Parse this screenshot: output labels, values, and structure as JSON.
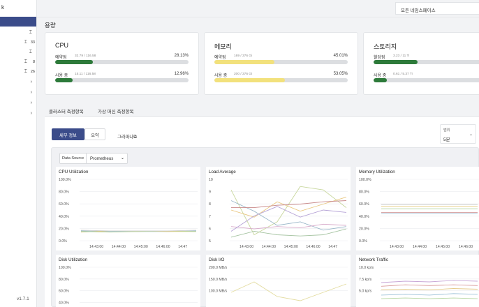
{
  "sidebar": {
    "brand": "k",
    "items": [
      {
        "icon": "⌶",
        "badge": ""
      },
      {
        "icon": "⌶",
        "badge": "33"
      },
      {
        "icon": "⌶",
        "badge": ""
      },
      {
        "icon": "⌶",
        "badge": "8"
      },
      {
        "icon": "⌶",
        "badge": "26"
      },
      {
        "icon": "›",
        "badge": ""
      },
      {
        "icon": "›",
        "badge": ""
      },
      {
        "icon": "›",
        "badge": ""
      },
      {
        "icon": "›",
        "badge": ""
      }
    ],
    "version": "v1.7.1"
  },
  "header": {
    "namespace": "모든 네임스페이스"
  },
  "capacity": {
    "title": "용량",
    "cards": [
      {
        "title": "CPU",
        "color": "#2d7a3a",
        "metrics": [
          {
            "label": "예약됨",
            "sub": "32.79 / 116.58",
            "pct": "28.13%",
            "value": 0.2813
          },
          {
            "label": "사용 중",
            "sub": "15.11 / 116.58",
            "pct": "12.96%",
            "value": 0.1296
          }
        ]
      },
      {
        "title": "메모리",
        "color": "#f2e17c",
        "metrics": [
          {
            "label": "예약됨",
            "sub": "169 / 376 Gi",
            "pct": "45.01%",
            "value": 0.4501
          },
          {
            "label": "사용 중",
            "sub": "200 / 376 Gi",
            "pct": "53.05%",
            "value": 0.5305
          }
        ]
      },
      {
        "title": "스토리지",
        "color": "#2d7a3a",
        "metrics": [
          {
            "label": "할당됨",
            "sub": "3.23 / 11 Ti",
            "pct": "",
            "value": 0.36
          },
          {
            "label": "사용 중",
            "sub": "0.61 / 5.37 Ti",
            "pct": "",
            "value": 0.11
          }
        ]
      }
    ]
  },
  "tabs": [
    {
      "label": "클러스터 측정항목",
      "active": true
    },
    {
      "label": "가상 머신 측정항목",
      "active": false
    }
  ],
  "panel": {
    "detail_button": "세부 정보",
    "summary_button": "요약",
    "grafana_link": "그라파나",
    "range_label": "범위",
    "range_value": "5분",
    "datasource_label": "Data Source",
    "datasource_value": "Prometheus"
  },
  "chart_data": [
    {
      "type": "line",
      "title": "CPU Utilization",
      "y_ticks": [
        "100.0%",
        "80.0%",
        "60.0%",
        "40.0%",
        "20.0%",
        "0.0%"
      ],
      "ylim": [
        0,
        100
      ],
      "x_ticks": [
        "14:43:00",
        "14:44:00",
        "14:45:00",
        "14:46:00",
        "14:47"
      ],
      "series": [
        {
          "color": "#8fbfd6",
          "values": [
            16,
            15,
            15,
            15,
            16
          ]
        },
        {
          "color": "#e3c97a",
          "values": [
            14,
            16,
            16,
            15,
            15
          ]
        },
        {
          "color": "#b8d39b",
          "values": [
            15,
            14,
            15,
            16,
            15
          ]
        },
        {
          "color": "#cfcfcf",
          "values": [
            17,
            16,
            16,
            16,
            17
          ]
        }
      ]
    },
    {
      "type": "line",
      "title": "Load Average",
      "y_ticks": [
        "10",
        "9",
        "8",
        "7",
        "6",
        "5"
      ],
      "ylim": [
        4.8,
        10
      ],
      "x_ticks": [
        "14:43:00",
        "14:44:00",
        "14:45:00",
        "14:46:00",
        "14:47"
      ],
      "series": [
        {
          "color": "#c8d79d",
          "values": [
            9.1,
            5.3,
            6.4,
            9.4,
            9.1,
            7.6
          ]
        },
        {
          "color": "#e9c77f",
          "values": [
            7.4,
            6.8,
            8.1,
            7.3,
            7.9,
            8.5
          ]
        },
        {
          "color": "#9bb7c9",
          "values": [
            8.2,
            7.3,
            6.1,
            6.4,
            5.7,
            6.0
          ]
        },
        {
          "color": "#c98a8a",
          "values": [
            7.6,
            7.6,
            7.8,
            7.9,
            8.1,
            8.2
          ]
        },
        {
          "color": "#a6c4a2",
          "values": [
            5.1,
            5.6,
            5.3,
            5.2,
            5.3,
            5.8
          ]
        },
        {
          "color": "#d7a9c9",
          "values": [
            6.0,
            5.8,
            6.0,
            5.9,
            6.2,
            6.1
          ]
        },
        {
          "color": "#b5a2d6",
          "values": [
            5.6,
            6.9,
            7.7,
            6.8,
            7.4,
            7.2
          ]
        }
      ]
    },
    {
      "type": "line",
      "title": "Memory Utilization",
      "y_ticks": [
        "100.0%",
        "80.0%",
        "60.0%",
        "40.0%",
        "20.0%",
        "0.0%"
      ],
      "ylim": [
        0,
        100
      ],
      "x_ticks": [
        "14:43:00",
        "14:44:00",
        "14:45:00",
        "14:46:00"
      ],
      "series": [
        {
          "color": "#c9c9c9",
          "values": [
            59,
            59,
            59,
            59,
            59
          ]
        },
        {
          "color": "#e5cd84",
          "values": [
            56,
            56,
            56,
            56,
            56
          ]
        },
        {
          "color": "#b5d6a2",
          "values": [
            52,
            52,
            52,
            52,
            52
          ]
        },
        {
          "color": "#d9a7a7",
          "values": [
            46,
            46,
            46,
            46,
            46
          ]
        },
        {
          "color": "#a9c4d8",
          "values": [
            44,
            44,
            44,
            44,
            44
          ]
        }
      ]
    },
    {
      "type": "line",
      "title": "Disk Utilization",
      "y_ticks": [
        "100.0%",
        "80.0%",
        "60.0%",
        "40.0%"
      ],
      "ylim": [
        0,
        100
      ],
      "x_ticks": [],
      "series": []
    },
    {
      "type": "line",
      "title": "Disk I/O",
      "y_ticks": [
        "200.0 MB/s",
        "150.0 MB/s",
        "100.0 MB/s"
      ],
      "ylim": [
        80,
        220
      ],
      "x_ticks": [],
      "series": [
        {
          "color": "#e3dca0",
          "values": [
            160,
            185,
            150,
            140,
            160,
            180
          ]
        }
      ]
    },
    {
      "type": "line",
      "title": "Network Traffic",
      "y_ticks": [
        "10.0 kp/s",
        "7.5 kp/s",
        "5.0 kp/s"
      ],
      "ylim": [
        4,
        12
      ],
      "x_ticks": [],
      "series": [
        {
          "color": "#c8a6d6",
          "values": [
            9.9,
            10.1,
            10.0,
            10.2,
            10.1
          ]
        },
        {
          "color": "#d99a9a",
          "values": [
            9.4,
            9.6,
            9.5,
            9.6,
            9.5
          ]
        },
        {
          "color": "#e5c98a",
          "values": [
            8.9,
            9.0,
            8.9,
            9.1,
            9.0
          ]
        },
        {
          "color": "#9cc2d8",
          "values": [
            8.2,
            8.3,
            8.2,
            8.4,
            8.3
          ]
        },
        {
          "color": "#b5d6a2",
          "values": [
            7.7,
            7.8,
            7.7,
            7.8,
            7.7
          ]
        }
      ]
    }
  ]
}
